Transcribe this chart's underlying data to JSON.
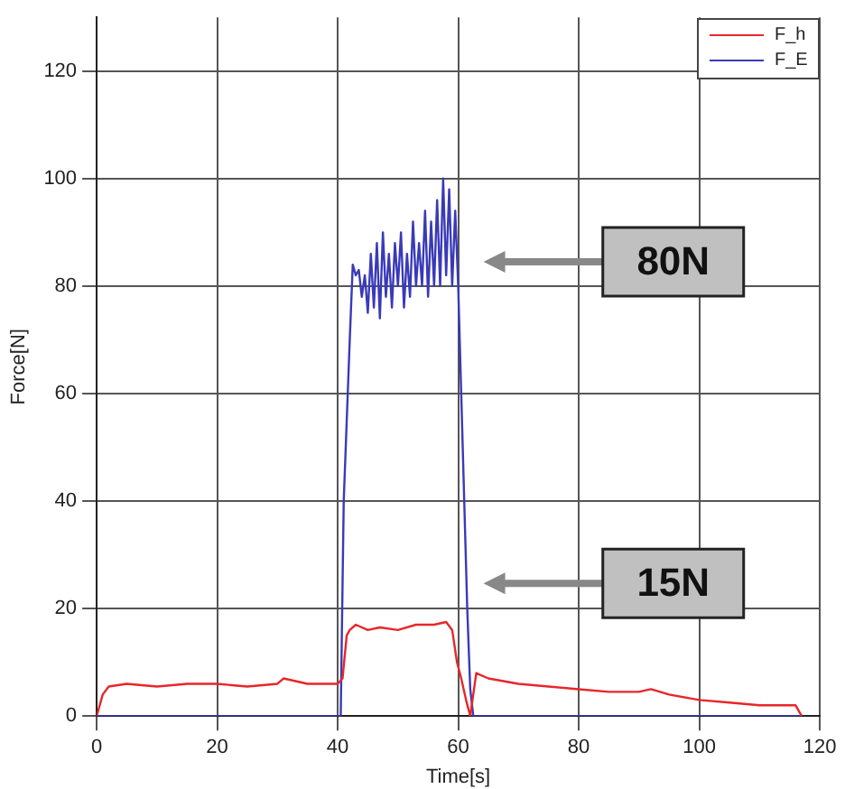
{
  "chart_data": {
    "type": "line",
    "xlabel": "Time[s]",
    "ylabel": "Force[N]",
    "xlim": [
      0,
      120
    ],
    "xticks": [
      0,
      20,
      40,
      60,
      80,
      100,
      120
    ],
    "ylim": [
      0,
      130
    ],
    "yticks": [
      0,
      20,
      40,
      60,
      80,
      100,
      120
    ],
    "grid": true,
    "legend": "top right",
    "marker": "none",
    "line_style": "solid",
    "series": [
      {
        "name": "F_h",
        "color": "#e8262a",
        "x": [
          0,
          1,
          2,
          5,
          10,
          15,
          20,
          25,
          30,
          31,
          35,
          40,
          40.8,
          41.5,
          42,
          43,
          45,
          47,
          50,
          53,
          56,
          58,
          59,
          59.8,
          60.5,
          61.3,
          62,
          63,
          65,
          70,
          75,
          80,
          85,
          90,
          92,
          95,
          100,
          105,
          110,
          114,
          116,
          117
        ],
        "values": [
          0,
          4,
          5.5,
          6,
          5.5,
          6,
          6,
          5.5,
          6,
          7,
          6,
          6,
          7,
          15,
          16,
          17,
          16,
          16.5,
          16,
          17,
          17,
          17.5,
          16,
          10,
          7,
          3,
          0,
          8,
          7,
          6,
          5.5,
          5,
          4.5,
          4.5,
          5,
          4,
          3,
          2.5,
          2,
          2,
          2,
          0
        ]
      },
      {
        "name": "F_E",
        "color": "#3a3ab8",
        "x": [
          0,
          40.5,
          41,
          41.5,
          42,
          42.5,
          43,
          43.5,
          44,
          44.5,
          45,
          45.5,
          46,
          46.5,
          47,
          47.5,
          48,
          48.5,
          49,
          49.5,
          50,
          50.5,
          51,
          51.5,
          52,
          52.5,
          53,
          53.5,
          54,
          54.5,
          55,
          55.5,
          56,
          56.5,
          57,
          57.5,
          58,
          58.5,
          59,
          59.5,
          60,
          60.5,
          61,
          61.5,
          62,
          62.5,
          63,
          117
        ],
        "values": [
          0,
          0,
          40,
          55,
          70,
          84,
          82,
          83,
          78,
          82,
          75,
          86,
          76,
          88,
          74,
          90,
          78,
          86,
          76,
          88,
          80,
          90,
          76,
          86,
          78,
          92,
          80,
          88,
          80,
          94,
          78,
          92,
          80,
          96,
          80,
          100,
          82,
          98,
          80,
          94,
          80,
          60,
          40,
          20,
          5,
          0,
          0,
          0
        ]
      }
    ],
    "annotations": [
      "80N",
      "15N"
    ]
  }
}
